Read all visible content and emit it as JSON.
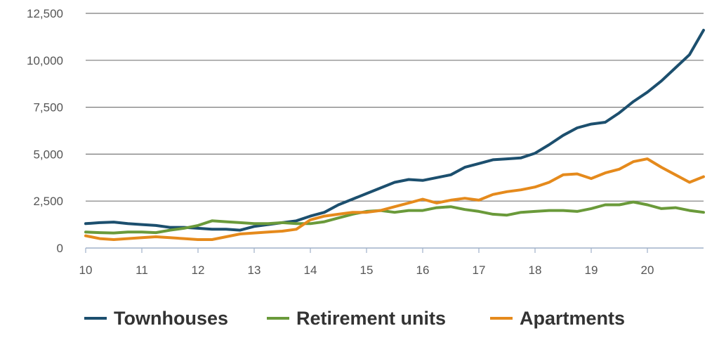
{
  "chart_data": {
    "type": "line",
    "title": "",
    "xlabel": "",
    "ylabel": "",
    "xlim": [
      10,
      21
    ],
    "ylim": [
      0,
      12500
    ],
    "grid": true,
    "legend_position": "bottom",
    "x_ticks": [
      "10",
      "11",
      "12",
      "13",
      "14",
      "15",
      "16",
      "17",
      "18",
      "19",
      "20"
    ],
    "y_ticks": [
      "0",
      "2,500",
      "5,000",
      "7,500",
      "10,000",
      "12,500"
    ],
    "x": [
      10.0,
      10.25,
      10.5,
      10.75,
      11.0,
      11.25,
      11.5,
      11.75,
      12.0,
      12.25,
      12.5,
      12.75,
      13.0,
      13.25,
      13.5,
      13.75,
      14.0,
      14.25,
      14.5,
      14.75,
      15.0,
      15.25,
      15.5,
      15.75,
      16.0,
      16.25,
      16.5,
      16.75,
      17.0,
      17.25,
      17.5,
      17.75,
      18.0,
      18.25,
      18.5,
      18.75,
      19.0,
      19.25,
      19.5,
      19.75,
      20.0,
      20.25,
      20.5,
      20.75,
      21.0
    ],
    "series": [
      {
        "name": "Townhouses",
        "color": "#1c4f6e",
        "values": [
          1300,
          1350,
          1380,
          1300,
          1250,
          1200,
          1100,
          1100,
          1050,
          1000,
          1000,
          950,
          1150,
          1250,
          1350,
          1450,
          1700,
          1900,
          2300,
          2600,
          2900,
          3200,
          3500,
          3650,
          3600,
          3750,
          3900,
          4300,
          4500,
          4700,
          4750,
          4800,
          5050,
          5500,
          6000,
          6400,
          6600,
          6700,
          7200,
          7800,
          8300,
          8900,
          9600,
          10300,
          11600
        ]
      },
      {
        "name": "Retirement units",
        "color": "#6a9a3a",
        "values": [
          850,
          820,
          800,
          850,
          850,
          820,
          950,
          1050,
          1200,
          1450,
          1400,
          1350,
          1300,
          1300,
          1350,
          1300,
          1300,
          1400,
          1600,
          1800,
          1950,
          2000,
          1900,
          2000,
          2000,
          2150,
          2200,
          2050,
          1950,
          1800,
          1750,
          1900,
          1950,
          2000,
          2000,
          1950,
          2100,
          2300,
          2300,
          2450,
          2300,
          2100,
          2150,
          2000,
          1900
        ]
      },
      {
        "name": "Apartments",
        "color": "#e58a1c",
        "values": [
          650,
          500,
          450,
          500,
          550,
          600,
          550,
          500,
          450,
          450,
          600,
          750,
          800,
          850,
          900,
          1000,
          1500,
          1700,
          1800,
          1900,
          1900,
          2000,
          2200,
          2400,
          2600,
          2400,
          2550,
          2650,
          2550,
          2850,
          3000,
          3100,
          3250,
          3500,
          3900,
          3950,
          3700,
          4000,
          4200,
          4600,
          4750,
          4300,
          3900,
          3500,
          3800
        ]
      }
    ]
  }
}
